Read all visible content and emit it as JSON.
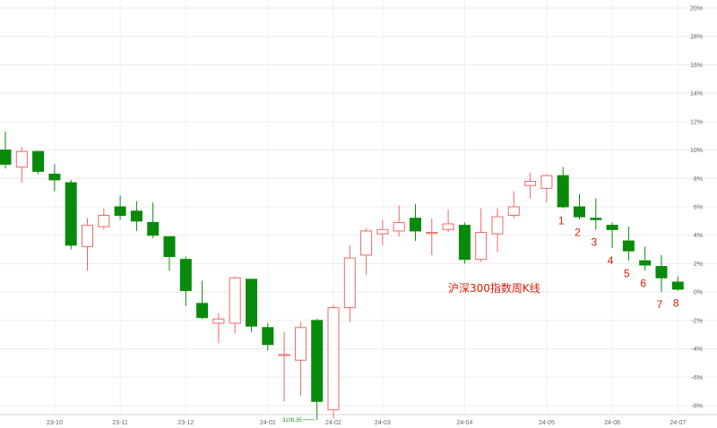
{
  "chart_data": {
    "type": "candlestick",
    "title": "",
    "xlabel": "",
    "ylabel": "",
    "ylim": [
      -9,
      20
    ],
    "y_unit": "%",
    "y_ticks": [
      20,
      18,
      16,
      14,
      12,
      10,
      8,
      6,
      4,
      2,
      0,
      -2,
      -4,
      -6,
      -8
    ],
    "y_tick_labels": [
      "20%",
      "18%",
      "16%",
      "14%",
      "12%",
      "10%",
      "8%",
      "6%",
      "4%",
      "2%",
      "0%",
      "-2%",
      "-4%",
      "-6%",
      "-8%"
    ],
    "x_tick_labels": [
      {
        "label": "23-10",
        "index": 3
      },
      {
        "label": "23-11",
        "index": 7
      },
      {
        "label": "23-12",
        "index": 11
      },
      {
        "label": "24-01",
        "index": 16
      },
      {
        "label": "24-02",
        "index": 20
      },
      {
        "label": "24-03",
        "index": 23
      },
      {
        "label": "24-04",
        "index": 28
      },
      {
        "label": "24-05",
        "index": 33
      },
      {
        "label": "24-06",
        "index": 37
      },
      {
        "label": "24-07",
        "index": 41
      }
    ],
    "grid": true,
    "up_color": "#f06868",
    "down_color": "#0a8a0a",
    "candles": [
      {
        "o": 10.0,
        "c": 9.0,
        "h": 11.3,
        "l": 8.7
      },
      {
        "o": 8.8,
        "c": 9.9,
        "h": 10.2,
        "l": 7.7
      },
      {
        "o": 9.9,
        "c": 8.5,
        "h": 9.9,
        "l": 8.3
      },
      {
        "o": 8.3,
        "c": 7.9,
        "h": 9.0,
        "l": 7.1
      },
      {
        "o": 7.7,
        "c": 3.3,
        "h": 7.9,
        "l": 3.0
      },
      {
        "o": 3.2,
        "c": 4.7,
        "h": 5.2,
        "l": 1.5
      },
      {
        "o": 4.6,
        "c": 5.4,
        "h": 5.9,
        "l": 4.4
      },
      {
        "o": 6.0,
        "c": 5.4,
        "h": 6.8,
        "l": 5.1
      },
      {
        "o": 5.7,
        "c": 5.0,
        "h": 6.4,
        "l": 4.3
      },
      {
        "o": 4.9,
        "c": 4.0,
        "h": 6.3,
        "l": 3.8
      },
      {
        "o": 3.9,
        "c": 2.5,
        "h": 3.9,
        "l": 1.5
      },
      {
        "o": 2.3,
        "c": 0.1,
        "h": 2.5,
        "l": -1.0
      },
      {
        "o": -0.8,
        "c": -1.8,
        "h": 0.8,
        "l": -1.9
      },
      {
        "o": -2.2,
        "c": -1.9,
        "h": -1.5,
        "l": -3.6
      },
      {
        "o": -2.2,
        "c": 1.0,
        "h": 1.1,
        "l": -2.9
      },
      {
        "o": 0.9,
        "c": -2.4,
        "h": 0.9,
        "l": -2.8
      },
      {
        "o": -2.5,
        "c": -3.7,
        "h": -2.2,
        "l": -4.1
      },
      {
        "o": -4.4,
        "c": -4.4,
        "h": -2.8,
        "l": -7.7
      },
      {
        "o": -4.8,
        "c": -2.5,
        "h": -2.1,
        "l": -7.3
      },
      {
        "o": -2.0,
        "c": -7.7,
        "h": -1.9,
        "l": -9.0
      },
      {
        "o": -8.3,
        "c": -1.1,
        "h": -0.9,
        "l": -8.9
      },
      {
        "o": -1.1,
        "c": 2.4,
        "h": 3.3,
        "l": -2.1
      },
      {
        "o": 2.6,
        "c": 4.3,
        "h": 4.5,
        "l": 1.2
      },
      {
        "o": 4.1,
        "c": 4.4,
        "h": 5.1,
        "l": 3.3
      },
      {
        "o": 4.3,
        "c": 4.9,
        "h": 6.1,
        "l": 3.9
      },
      {
        "o": 5.2,
        "c": 4.3,
        "h": 6.2,
        "l": 3.6
      },
      {
        "o": 4.2,
        "c": 4.2,
        "h": 5.2,
        "l": 2.6
      },
      {
        "o": 4.4,
        "c": 4.8,
        "h": 5.8,
        "l": 4.2
      },
      {
        "o": 4.7,
        "c": 2.3,
        "h": 4.9,
        "l": 2.0
      },
      {
        "o": 2.3,
        "c": 4.2,
        "h": 5.9,
        "l": 2.1
      },
      {
        "o": 4.1,
        "c": 5.3,
        "h": 5.9,
        "l": 2.8
      },
      {
        "o": 5.4,
        "c": 6.0,
        "h": 7.1,
        "l": 5.2
      },
      {
        "o": 7.5,
        "c": 7.8,
        "h": 8.4,
        "l": 6.6
      },
      {
        "o": 7.3,
        "c": 8.2,
        "h": 8.3,
        "l": 6.3
      },
      {
        "o": 8.2,
        "c": 6.0,
        "h": 8.8,
        "l": 5.9
      },
      {
        "o": 6.0,
        "c": 5.3,
        "h": 6.9,
        "l": 5.1
      },
      {
        "o": 5.2,
        "c": 5.1,
        "h": 6.6,
        "l": 4.4
      },
      {
        "o": 4.7,
        "c": 4.4,
        "h": 4.9,
        "l": 3.1
      },
      {
        "o": 3.6,
        "c": 2.9,
        "h": 4.6,
        "l": 2.2
      },
      {
        "o": 2.2,
        "c": 1.9,
        "h": 3.2,
        "l": 1.5
      },
      {
        "o": 1.8,
        "c": 1.0,
        "h": 2.6,
        "l": 0.0
      },
      {
        "o": 0.7,
        "c": 0.2,
        "h": 1.1,
        "l": 0.1
      }
    ],
    "annotations": {
      "series_label": "沪深300指数周K线",
      "min_label": "3108.35",
      "numbered": [
        {
          "text": "1",
          "index": 34
        },
        {
          "text": "2",
          "index": 35
        },
        {
          "text": "3",
          "index": 36
        },
        {
          "text": "4",
          "index": 37
        },
        {
          "text": "5",
          "index": 38
        },
        {
          "text": "6",
          "index": 39
        },
        {
          "text": "7",
          "index": 40
        },
        {
          "text": "8",
          "index": 41
        }
      ]
    }
  }
}
